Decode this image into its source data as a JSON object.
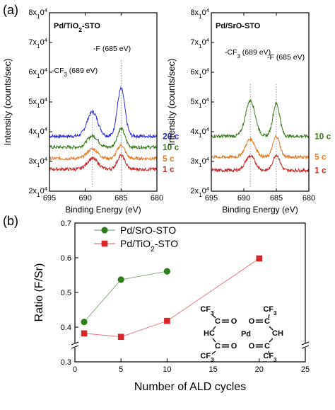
{
  "panels": {
    "a": "(a)",
    "b": "(b)"
  },
  "xps_charts": [
    {
      "title": "Pd/TiO2-STO",
      "xlabel": "Binding Energy (eV)",
      "ylabel": "Intensity (counts/sec)",
      "xticks": [
        "695",
        "690",
        "685",
        "680"
      ],
      "yticks": [
        "2x10^4",
        "3x10^4",
        "4x10^4",
        "5x10^4",
        "6x10^4",
        "7x10^4",
        "8x10^4"
      ],
      "ylim": [
        20000,
        80000
      ],
      "xlim": [
        695,
        680
      ],
      "annotations": {
        "cf3": "-CF3 (689 eV)",
        "f": "-F (685 eV)"
      },
      "series": [
        {
          "name": "20 c",
          "color": "#2a2ad6",
          "base": 38500,
          "cf3_peak": 8200,
          "f_peak": 16000
        },
        {
          "name": "10 c",
          "color": "#3a7a1e",
          "base": 34800,
          "cf3_peak": 3800,
          "f_peak": 6200
        },
        {
          "name": "5 c",
          "color": "#e07a26",
          "base": 31000,
          "cf3_peak": 3200,
          "f_peak": 4500
        },
        {
          "name": "1 c",
          "color": "#c8282a",
          "base": 27400,
          "cf3_peak": 3600,
          "f_peak": 4600
        }
      ]
    },
    {
      "title": "Pd/SrO-STO",
      "xlabel": "Binding Energy (eV)",
      "ylabel": "Intensity (counts/sec)",
      "xticks": [
        "695",
        "690",
        "685",
        "680"
      ],
      "yticks": [
        "2x10^4",
        "3x10^4",
        "4x10^4",
        "5x10^4",
        "6x10^4",
        "7x10^4",
        "8x10^4"
      ],
      "ylim": [
        20000,
        80000
      ],
      "xlim": [
        695,
        680
      ],
      "annotations": {
        "cf3": "-CF3 (689 eV)",
        "f": "-F (685 eV)"
      },
      "series": [
        {
          "name": "10 c",
          "color": "#3a7a1e",
          "base": 38500,
          "cf3_peak": 12000,
          "f_peak": 11000
        },
        {
          "name": "5 c",
          "color": "#e07a26",
          "base": 31500,
          "cf3_peak": 6000,
          "f_peak": 7000
        },
        {
          "name": "1 c",
          "color": "#c8282a",
          "base": 27000,
          "cf3_peak": 4800,
          "f_peak": 5200
        }
      ]
    }
  ],
  "chart_data": {
    "type": "line",
    "xlabel": "Number of ALD cycles",
    "ylabel": "Ratio (F/Sr)",
    "xlim": [
      0,
      25
    ],
    "ylim": [
      0.3,
      0.7
    ],
    "xticks": [
      "0",
      "5",
      "10",
      "15",
      "20",
      "25"
    ],
    "yticks": [
      "0.3",
      "0.4",
      "0.5",
      "0.6",
      "0.7"
    ],
    "legend": "top-left",
    "series": [
      {
        "name": "Pd/SrO-STO",
        "color": "#2f7d1e",
        "marker": "circle",
        "x": [
          1,
          5,
          10
        ],
        "values": [
          0.415,
          0.537,
          0.561
        ]
      },
      {
        "name": "Pd/TiO2-STO",
        "color": "#d7262b",
        "marker": "square",
        "x": [
          1,
          5,
          10,
          20
        ],
        "values": [
          0.382,
          0.372,
          0.418,
          0.598
        ]
      }
    ]
  },
  "chem": {
    "cf3": "CF3",
    "hc": "HC",
    "ch": "CH",
    "o": "O",
    "c": "C",
    "pd": "Pd"
  }
}
